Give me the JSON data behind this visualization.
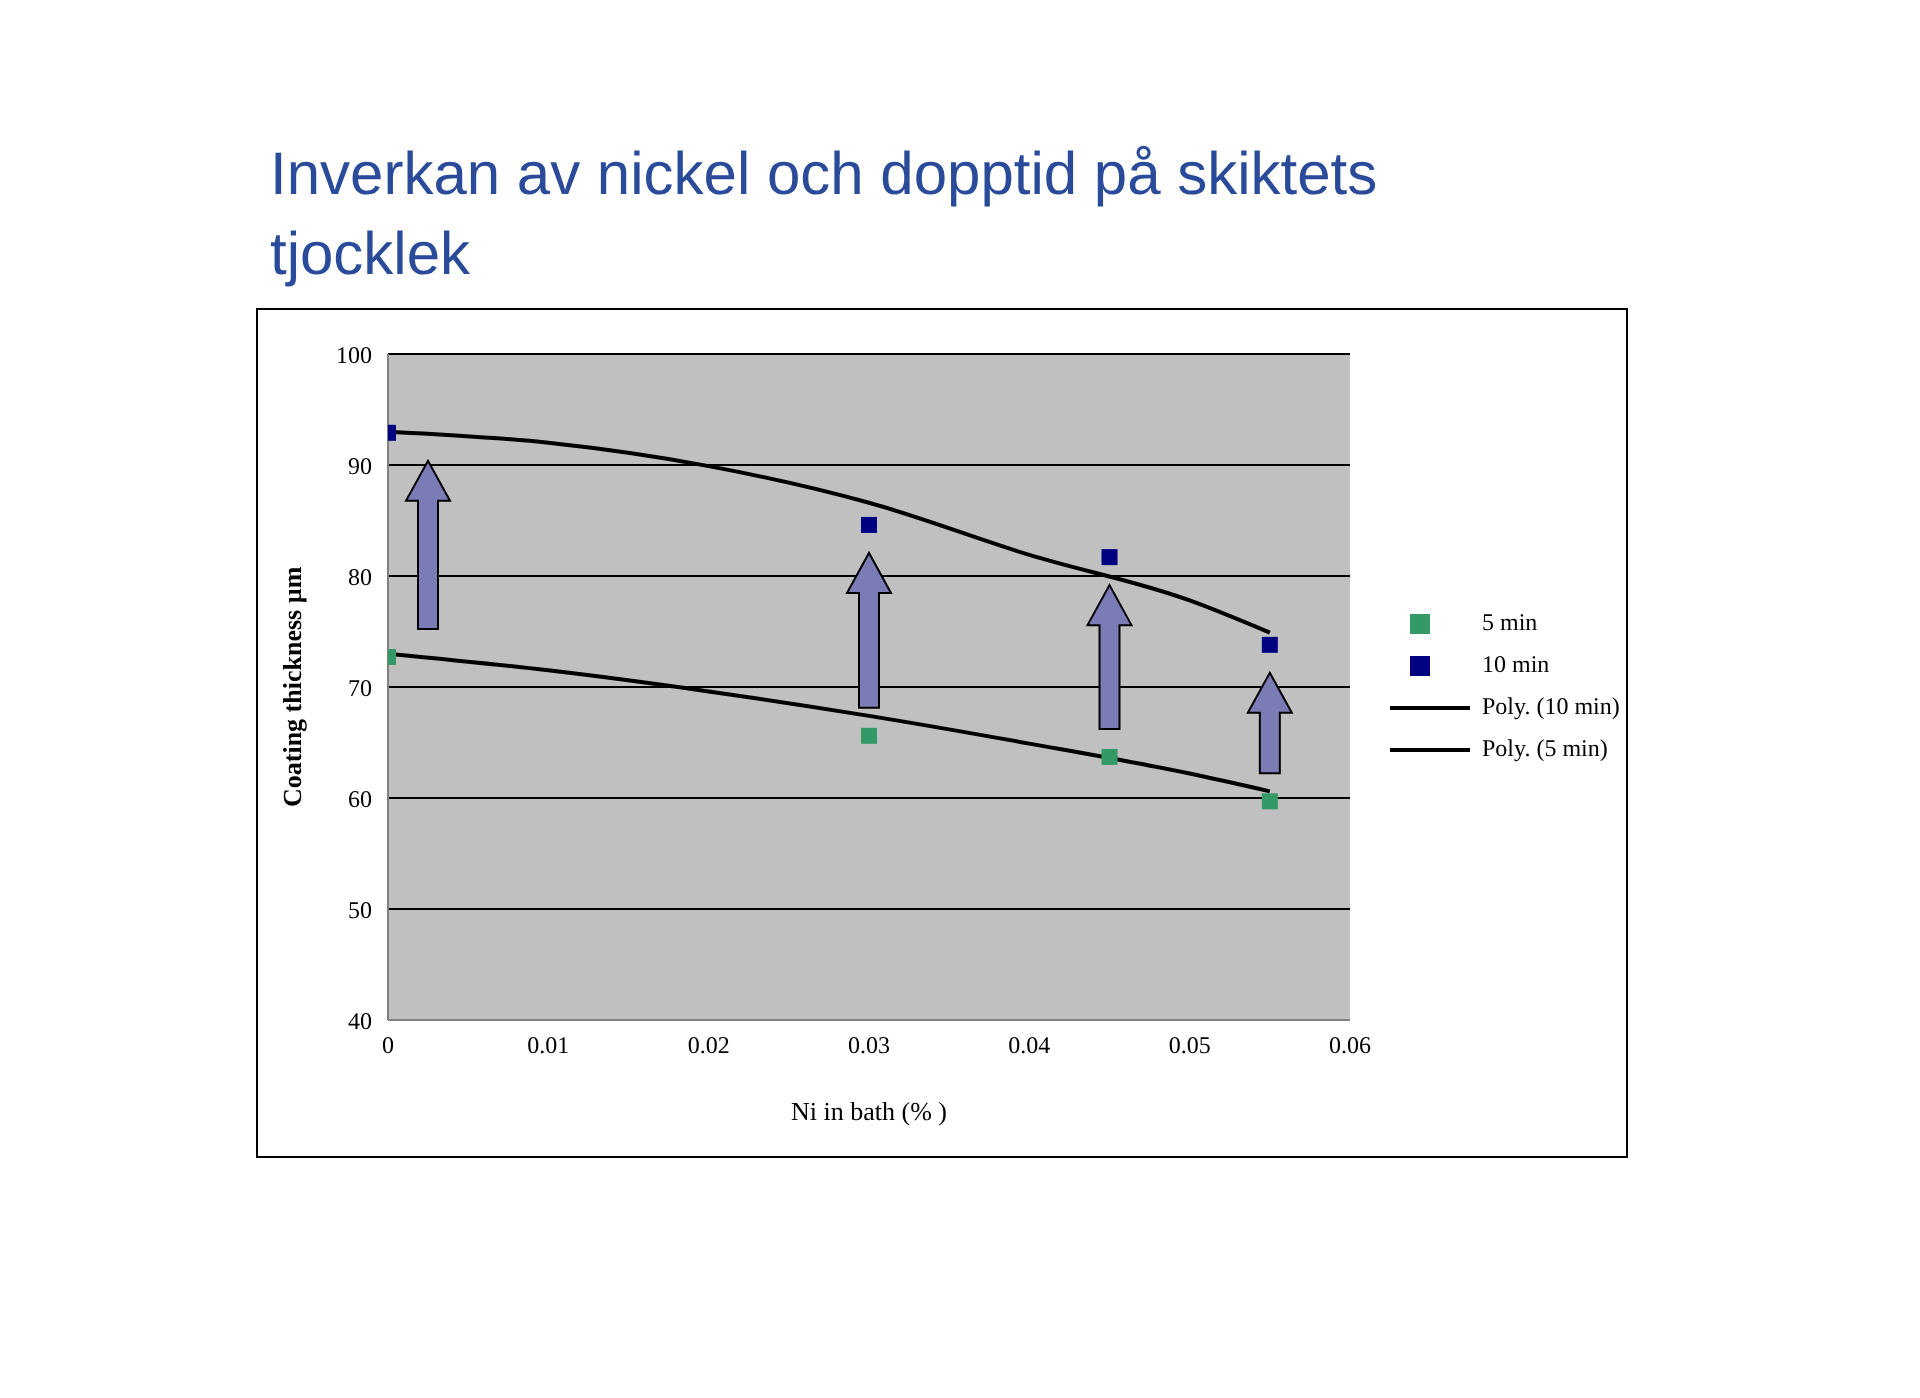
{
  "chart_data": {
    "type": "scatter",
    "title": "Inverkan av nickel och dopptid på skiktets tjocklek",
    "xlabel": "Ni in bath (% )",
    "ylabel": "Coating thickness µm",
    "xlim": [
      0,
      0.06
    ],
    "xticks": [
      0,
      0.01,
      0.02,
      0.03,
      0.04,
      0.05,
      0.06
    ],
    "ylim": [
      40,
      100
    ],
    "yticks": [
      40,
      50,
      60,
      70,
      80,
      90,
      100
    ],
    "grid": "y",
    "legend": "right",
    "marker": "square",
    "series": [
      {
        "name": "5 min",
        "color": "#339966",
        "x": [
          0,
          0.03,
          0.045,
          0.055
        ],
        "values": [
          72.7,
          65.6,
          63.7,
          59.7
        ]
      },
      {
        "name": "10 min",
        "color": "#000080",
        "x": [
          0,
          0.03,
          0.045,
          0.055
        ],
        "values": [
          92.9,
          84.6,
          81.7,
          73.8
        ]
      },
      {
        "name": "Poly. (10 min)",
        "type": "line",
        "marker": "none",
        "color": "#000000",
        "x": [
          0,
          0.01,
          0.02,
          0.03,
          0.04,
          0.05,
          0.055
        ],
        "values": [
          93,
          92,
          89.9,
          86.6,
          81.9,
          77.8,
          74.9
        ]
      },
      {
        "name": "Poly. (5 min)",
        "type": "line",
        "marker": "none",
        "color": "#000000",
        "x": [
          0,
          0.01,
          0.02,
          0.03,
          0.04,
          0.05,
          0.055
        ],
        "values": [
          73,
          71.5,
          69.6,
          67.4,
          64.9,
          62.2,
          60.6
        ]
      }
    ]
  }
}
